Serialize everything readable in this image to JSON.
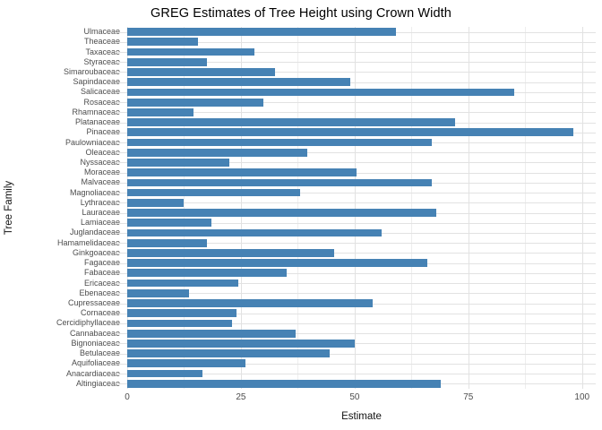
{
  "title": "GREG Estimates of Tree Height using Crown Width",
  "y_axis": {
    "label": "Tree Family"
  },
  "x_axis": {
    "label": "Estimate",
    "tick_labels": [
      "0",
      "25",
      "50",
      "75",
      "100"
    ]
  },
  "colors": {
    "bar": "#4682B4",
    "grid_major": "#e2e2e2",
    "grid_minor": "#eeeeee",
    "tick_mark": "#d6d6d6",
    "axis_text": "#4d4d4d",
    "title_text": "#000000",
    "background": "#ffffff"
  },
  "chart_data": {
    "type": "bar",
    "orientation": "horizontal",
    "title": "GREG Estimates of Tree Height using Crown Width",
    "xlabel": "Estimate",
    "ylabel": "Tree Family",
    "xlim": [
      0,
      103
    ],
    "x_major_ticks": [
      0,
      25,
      50,
      75,
      100
    ],
    "x_minor_ticks": [
      12.5,
      37.5,
      62.5,
      87.5
    ],
    "grid": true,
    "legend": false,
    "categories_top_to_bottom": [
      "Ulmaceae",
      "Theaceae",
      "Taxaceae",
      "Styraceae",
      "Simaroubaceae",
      "Sapindaceae",
      "Salicaceae",
      "Rosaceae",
      "Rhamnaceae",
      "Platanaceae",
      "Pinaceae",
      "Paulowniaceae",
      "Oleaceae",
      "Nyssaceae",
      "Moraceae",
      "Malvaceae",
      "Magnoliaceae",
      "Lythraceae",
      "Lauraceae",
      "Lamiaceae",
      "Juglandaceae",
      "Hamamelidaceae",
      "Ginkgoaceae",
      "Fagaceae",
      "Fabaceae",
      "Ericaceae",
      "Ebenaceae",
      "Cupressaceae",
      "Cornaceae",
      "Cercidiphyllaceae",
      "Cannabaceae",
      "Bignoniaceae",
      "Betulaceae",
      "Aquifoliaceae",
      "Anacardiaceae",
      "Altingiaceae"
    ],
    "values": [
      59,
      15.5,
      28,
      17.5,
      32.5,
      49,
      85,
      30,
      14.5,
      72,
      98,
      67,
      39.5,
      22.5,
      50.5,
      67,
      38,
      12.5,
      68,
      18.5,
      56,
      17.5,
      45.5,
      66,
      35,
      24.5,
      13.5,
      54,
      24,
      23,
      37,
      50,
      44.5,
      26,
      16.5,
      69
    ]
  }
}
